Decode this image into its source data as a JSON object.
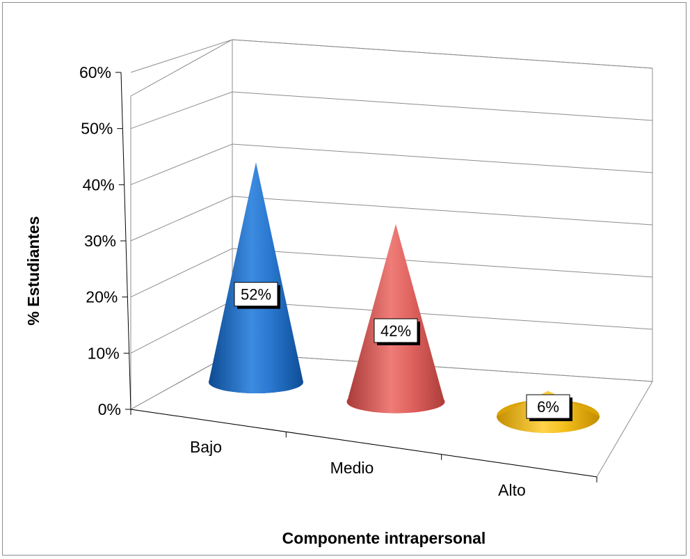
{
  "chart_data": {
    "type": "bar",
    "bar_shape": "cone",
    "categories": [
      "Bajo",
      "Medio",
      "Alto"
    ],
    "values": [
      52,
      42,
      6
    ],
    "data_labels": [
      "52%",
      "42%",
      "6%"
    ],
    "colors": [
      "#1f6fc5",
      "#d9534f",
      "#f2b705"
    ],
    "ylim": [
      0,
      60
    ],
    "yticks": [
      "0%",
      "10%",
      "20%",
      "30%",
      "40%",
      "50%",
      "60%"
    ],
    "xlabel": "Componente intrapersonal",
    "ylabel": "% Estudiantes",
    "grid": true,
    "legend": "none"
  }
}
